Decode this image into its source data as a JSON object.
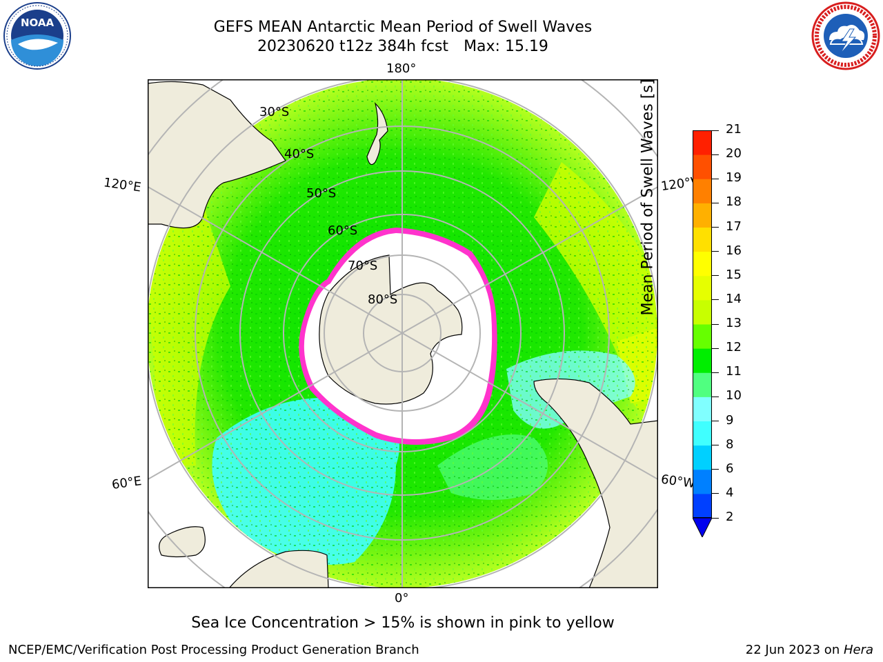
{
  "header": {
    "title_line1": "GEFS MEAN Antarctic Mean Period of Swell Waves",
    "title_line2_date": "20230620 t12z 384h fcst",
    "title_line2_max": "Max: 15.19"
  },
  "logos": {
    "left": "noaa-logo",
    "right": "nws-logo"
  },
  "map": {
    "projection": "south-polar-stereographic",
    "longitude_labels": {
      "top": "180°",
      "bottom": "0°",
      "left_upper": "120°E",
      "left_lower": "60°E",
      "right_upper": "120°W",
      "right_lower": "60°W"
    },
    "latitude_labels": [
      "30°S",
      "40°S",
      "50°S",
      "60°S",
      "70°S",
      "80°S"
    ],
    "colors": {
      "land": "#efecdc",
      "ice": "#ffffff",
      "ice_edge": "#ff33cc",
      "graticule": "#b4b4b4"
    }
  },
  "colorbar": {
    "label": "Mean Period of Swell Waves [s]",
    "ticks": [
      "2",
      "4",
      "6",
      "8",
      "9",
      "10",
      "11",
      "12",
      "13",
      "14",
      "15",
      "16",
      "17",
      "18",
      "19",
      "20",
      "21"
    ],
    "colors": [
      "#0040ff",
      "#0080ff",
      "#00d0ff",
      "#40ffff",
      "#80ffff",
      "#50ff80",
      "#00ee00",
      "#66ff00",
      "#c8ff00",
      "#e6ff00",
      "#ffff00",
      "#ffe000",
      "#ffb000",
      "#ff8000",
      "#ff5000",
      "#ff2000"
    ],
    "extend_min_color": "#0000ee"
  },
  "note": "Sea Ice Concentration > 15% is shown in pink to yellow",
  "footer": {
    "left": "NCEP/EMC/Verification Post Processing Product Generation Branch",
    "right_date": "22 Jun 2023 on ",
    "right_machine": "Hera"
  }
}
